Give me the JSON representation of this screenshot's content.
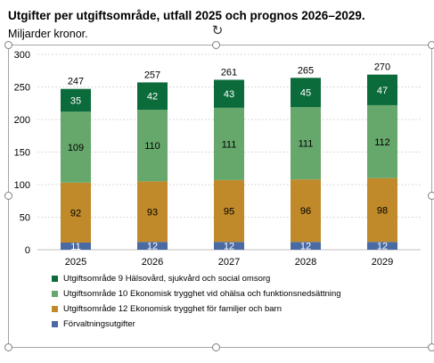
{
  "title": "Utgifter per utgiftsområde, utfall 2025 och prognos 2026–2029.",
  "subtitle": "Miljarder kronor.",
  "icons": {
    "rotate": "rotate-handle-icon",
    "resize": "resize-handle-icon"
  },
  "colors": {
    "uo9": "#0b6b3a",
    "uo10": "#66a86c",
    "uo12": "#c08a2a",
    "forvaltning": "#4a6aa3",
    "grid": "#d9d9d9",
    "axis": "#bfbfbf"
  },
  "chart_data": {
    "type": "bar",
    "stacked": true,
    "categories": [
      "2025",
      "2026",
      "2027",
      "2028",
      "2029"
    ],
    "series": [
      {
        "name": "Förvaltningsutgifter",
        "color": "#4a6aa3",
        "label_color": "#ffffff",
        "values": [
          11,
          12,
          12,
          12,
          12
        ]
      },
      {
        "name": "Utgiftsområde 12 Ekonomisk trygghet för familjer och barn",
        "color": "#c08a2a",
        "label_color": "#000000",
        "values": [
          92,
          93,
          95,
          96,
          98
        ]
      },
      {
        "name": "Utgiftsområde 10 Ekonomisk trygghet vid ohälsa och funktionsnedsättning",
        "color": "#66a86c",
        "label_color": "#000000",
        "values": [
          109,
          110,
          111,
          111,
          112
        ]
      },
      {
        "name": "Utgiftsområde 9 Hälsovård, sjukvård och social omsorg",
        "color": "#0b6b3a",
        "label_color": "#ffffff",
        "values": [
          35,
          42,
          43,
          45,
          47
        ]
      }
    ],
    "totals": [
      247,
      257,
      261,
      265,
      270
    ],
    "ylim": [
      0,
      300
    ],
    "yticks": [
      "0",
      "50",
      "100",
      "150",
      "200",
      "250",
      "300"
    ],
    "grid": true,
    "legend_position": "bottom",
    "legend_order": [
      3,
      2,
      1,
      0
    ]
  }
}
